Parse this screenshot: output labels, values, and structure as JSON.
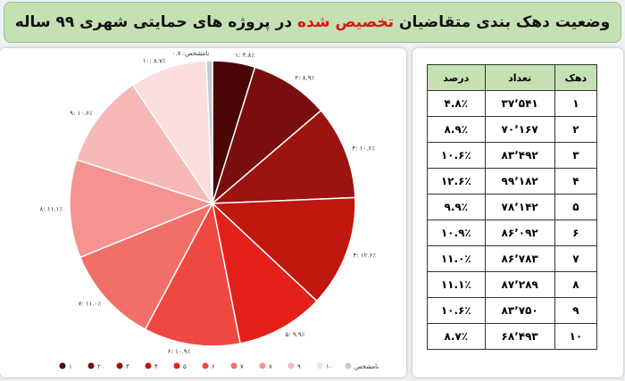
{
  "chart_data": {
    "type": "pie",
    "title": [
      "وضعیت دهک بندی متقاضیان",
      "تخصیص شده",
      "در پروژه های حمایتی شهری ۹۹ ساله"
    ],
    "categories": [
      "۱",
      "۲",
      "۳",
      "۴",
      "۵",
      "۶",
      "۷",
      "۸",
      "۹",
      "۱۰",
      "نامشخص"
    ],
    "values": [
      4.8,
      8.9,
      10.6,
      12.6,
      9.9,
      10.9,
      11.0,
      11.1,
      10.6,
      8.7,
      0.7
    ],
    "value_labels": [
      "۱: ۴.۸٪",
      "۲: ۸.۹٪",
      "۳: ۱۰.۶٪",
      "۴: ۱۲.۶٪",
      "۵: ۹.۹٪",
      "۶: ۱۰.۹٪",
      "۷: ۱۱.۰٪",
      "۸: ۱۱.۱٪",
      "۹: ۱۰.۶٪",
      "۱۰: ۸.۷٪",
      "نامشخص: ۰.۷"
    ],
    "colors": [
      "#4a0505",
      "#7a0d0d",
      "#9b1410",
      "#c0170f",
      "#e3201a",
      "#ef4840",
      "#f26f69",
      "#f59390",
      "#f7b9b7",
      "#fbdddd",
      "#c8c8c8"
    ]
  },
  "table": {
    "header": [
      "دهک",
      "تعداد",
      "درصد"
    ],
    "rows": [
      [
        "۱",
        "۳۷٬۵۴۱",
        "۴.۸٪"
      ],
      [
        "۲",
        "۷۰٬۱۶۷",
        "۸.۹٪"
      ],
      [
        "۳",
        "۸۳٬۴۹۲",
        "۱۰.۶٪"
      ],
      [
        "۴",
        "۹۹٬۱۸۲",
        "۱۲.۶٪"
      ],
      [
        "۵",
        "۷۸٬۱۴۲",
        "۹.۹٪"
      ],
      [
        "۶",
        "۸۶٬۰۹۲",
        "۱۰.۹٪"
      ],
      [
        "۷",
        "۸۶٬۷۸۳",
        "۱۱.۰٪"
      ],
      [
        "۸",
        "۸۷٬۲۸۹",
        "۱۱.۱٪"
      ],
      [
        "۹",
        "۸۳٬۷۵۰",
        "۱۰.۶٪"
      ],
      [
        "۱۰",
        "۶۸٬۴۹۳",
        "۸.۷٪"
      ]
    ]
  }
}
